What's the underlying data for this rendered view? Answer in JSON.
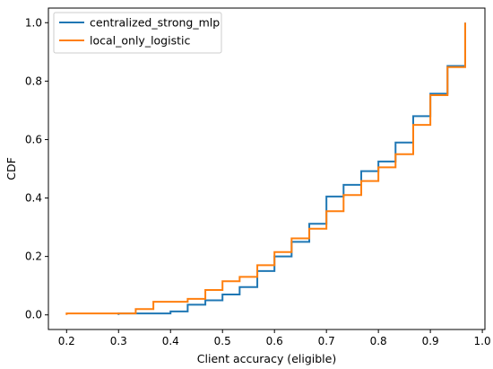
{
  "chart_data": {
    "type": "line",
    "title": "",
    "xlabel": "Client accuracy (eligible)",
    "ylabel": "CDF",
    "xlim": [
      0.165,
      1.005
    ],
    "ylim": [
      -0.05,
      1.05
    ],
    "xticks": [
      0.2,
      0.3,
      0.4,
      0.5,
      0.6,
      0.7,
      0.8,
      0.9,
      1.0
    ],
    "xtick_labels": [
      "0.2",
      "0.3",
      "0.4",
      "0.5",
      "0.6",
      "0.7",
      "0.8",
      "0.9",
      "1.0"
    ],
    "yticks": [
      0.0,
      0.2,
      0.4,
      0.6,
      0.8,
      1.0
    ],
    "ytick_labels": [
      "0.0",
      "0.2",
      "0.4",
      "0.6",
      "0.8",
      "1.0"
    ],
    "grid": false,
    "legend": "top-left",
    "step": "post",
    "series": [
      {
        "name": "centralized_strong_mlp",
        "color": "#1f77b4",
        "points": [
          [
            0.3,
            0.0
          ],
          [
            0.3,
            0.005
          ],
          [
            0.4,
            0.005
          ],
          [
            0.4,
            0.012
          ],
          [
            0.433,
            0.012
          ],
          [
            0.433,
            0.035
          ],
          [
            0.467,
            0.035
          ],
          [
            0.467,
            0.05
          ],
          [
            0.5,
            0.05
          ],
          [
            0.5,
            0.07
          ],
          [
            0.533,
            0.07
          ],
          [
            0.533,
            0.095
          ],
          [
            0.567,
            0.095
          ],
          [
            0.567,
            0.15
          ],
          [
            0.6,
            0.15
          ],
          [
            0.6,
            0.2
          ],
          [
            0.633,
            0.2
          ],
          [
            0.633,
            0.25
          ],
          [
            0.667,
            0.25
          ],
          [
            0.667,
            0.312
          ],
          [
            0.7,
            0.312
          ],
          [
            0.7,
            0.405
          ],
          [
            0.733,
            0.405
          ],
          [
            0.733,
            0.445
          ],
          [
            0.767,
            0.445
          ],
          [
            0.767,
            0.492
          ],
          [
            0.8,
            0.492
          ],
          [
            0.8,
            0.525
          ],
          [
            0.833,
            0.525
          ],
          [
            0.833,
            0.59
          ],
          [
            0.867,
            0.59
          ],
          [
            0.867,
            0.68
          ],
          [
            0.9,
            0.68
          ],
          [
            0.9,
            0.757
          ],
          [
            0.933,
            0.757
          ],
          [
            0.933,
            0.852
          ],
          [
            0.967,
            0.852
          ],
          [
            0.967,
            1.0
          ]
        ]
      },
      {
        "name": "local_only_logistic",
        "color": "#ff7f0e",
        "points": [
          [
            0.2,
            0.0
          ],
          [
            0.2,
            0.005
          ],
          [
            0.333,
            0.005
          ],
          [
            0.333,
            0.02
          ],
          [
            0.367,
            0.02
          ],
          [
            0.367,
            0.045
          ],
          [
            0.433,
            0.045
          ],
          [
            0.433,
            0.055
          ],
          [
            0.467,
            0.055
          ],
          [
            0.467,
            0.085
          ],
          [
            0.5,
            0.085
          ],
          [
            0.5,
            0.115
          ],
          [
            0.533,
            0.115
          ],
          [
            0.533,
            0.13
          ],
          [
            0.567,
            0.13
          ],
          [
            0.567,
            0.17
          ],
          [
            0.6,
            0.17
          ],
          [
            0.6,
            0.215
          ],
          [
            0.633,
            0.215
          ],
          [
            0.633,
            0.262
          ],
          [
            0.667,
            0.262
          ],
          [
            0.667,
            0.295
          ],
          [
            0.7,
            0.295
          ],
          [
            0.7,
            0.355
          ],
          [
            0.733,
            0.355
          ],
          [
            0.733,
            0.41
          ],
          [
            0.767,
            0.41
          ],
          [
            0.767,
            0.458
          ],
          [
            0.8,
            0.458
          ],
          [
            0.8,
            0.505
          ],
          [
            0.833,
            0.505
          ],
          [
            0.833,
            0.55
          ],
          [
            0.867,
            0.55
          ],
          [
            0.867,
            0.65
          ],
          [
            0.9,
            0.65
          ],
          [
            0.9,
            0.752
          ],
          [
            0.933,
            0.752
          ],
          [
            0.933,
            0.848
          ],
          [
            0.967,
            0.848
          ],
          [
            0.967,
            1.0
          ]
        ]
      }
    ]
  }
}
